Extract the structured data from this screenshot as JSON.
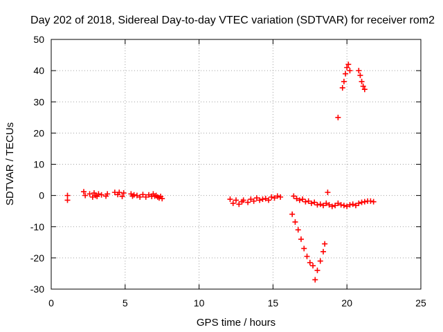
{
  "chart_data": {
    "type": "scatter",
    "title": "Day 202 of 2018, Sidereal Day-to-day VTEC variation (SDTVAR) for receiver rom2",
    "xlabel": "GPS time / hours",
    "ylabel": "SDTVAR / TECUs",
    "xlim": [
      0,
      25
    ],
    "ylim": [
      -30,
      50
    ],
    "xticks": [
      0,
      5,
      10,
      15,
      20,
      25
    ],
    "yticks": [
      -30,
      -20,
      -10,
      0,
      10,
      20,
      30,
      40,
      50
    ],
    "grid": true,
    "marker": "+",
    "color": "#ff0000",
    "series": [
      {
        "name": "SDTVAR",
        "x": [
          1.1,
          1.1,
          2.2,
          2.3,
          2.6,
          2.8,
          2.9,
          3.0,
          3.1,
          3.2,
          3.4,
          3.7,
          3.8,
          4.3,
          4.5,
          4.6,
          4.8,
          4.9,
          5.4,
          5.5,
          5.6,
          5.8,
          6.0,
          6.2,
          6.4,
          6.6,
          6.8,
          6.9,
          7.0,
          7.1,
          7.2,
          7.3,
          7.4,
          7.5,
          12.1,
          12.3,
          12.5,
          12.7,
          12.9,
          13.0,
          13.3,
          13.5,
          13.7,
          13.9,
          14.1,
          14.3,
          14.5,
          14.7,
          14.9,
          15.1,
          15.3,
          15.5,
          16.4,
          16.6,
          16.8,
          17.0,
          17.2,
          17.4,
          17.6,
          17.8,
          18.0,
          18.2,
          18.4,
          18.6,
          18.8,
          19.0,
          19.2,
          19.4,
          19.6,
          19.8,
          20.0,
          20.2,
          20.4,
          20.6,
          20.8,
          21.0,
          21.2,
          21.4,
          21.6,
          21.8,
          16.3,
          16.5,
          16.7,
          16.9,
          17.1,
          17.3,
          17.5,
          17.7,
          17.85,
          18.0,
          18.2,
          18.4,
          18.5,
          18.7,
          19.4,
          19.7,
          19.8,
          19.9,
          20.0,
          20.1,
          20.2,
          20.8,
          20.9,
          21.0,
          21.1,
          21.2
        ],
        "y": [
          0,
          -1.5,
          1.2,
          0,
          0.5,
          -0.5,
          0.8,
          0,
          -0.3,
          0.5,
          0.2,
          -0.2,
          0.5,
          1,
          0.3,
          1,
          -0.3,
          0.8,
          0.5,
          -0.2,
          0.2,
          0,
          -0.5,
          0.3,
          -0.5,
          0.2,
          -0.3,
          0.5,
          -0.2,
          0,
          -0.5,
          -0.8,
          -0.3,
          -1,
          -1.2,
          -2.5,
          -1.5,
          -2.8,
          -2,
          -1.5,
          -2.2,
          -1.2,
          -1.8,
          -0.8,
          -1.5,
          -1.2,
          -1,
          -1.5,
          -0.5,
          -0.8,
          -0.2,
          -0.5,
          -0.2,
          -1,
          -1.5,
          -1.2,
          -2,
          -1.8,
          -2.5,
          -2.2,
          -3,
          -2.8,
          -3.2,
          -2.5,
          -3,
          -3.5,
          -3.2,
          -2.5,
          -3,
          -3.2,
          -3.5,
          -3,
          -2.8,
          -3.2,
          -2.5,
          -2.2,
          -2,
          -1.8,
          -1.8,
          -2,
          -6,
          -8.5,
          -11,
          -14,
          -17,
          -19.5,
          -21.5,
          -22.5,
          -27,
          -24,
          -21,
          -18,
          -15.5,
          1,
          25,
          34.5,
          36.5,
          39,
          41,
          42,
          40,
          40,
          38.5,
          36.5,
          35,
          34
        ]
      }
    ]
  }
}
